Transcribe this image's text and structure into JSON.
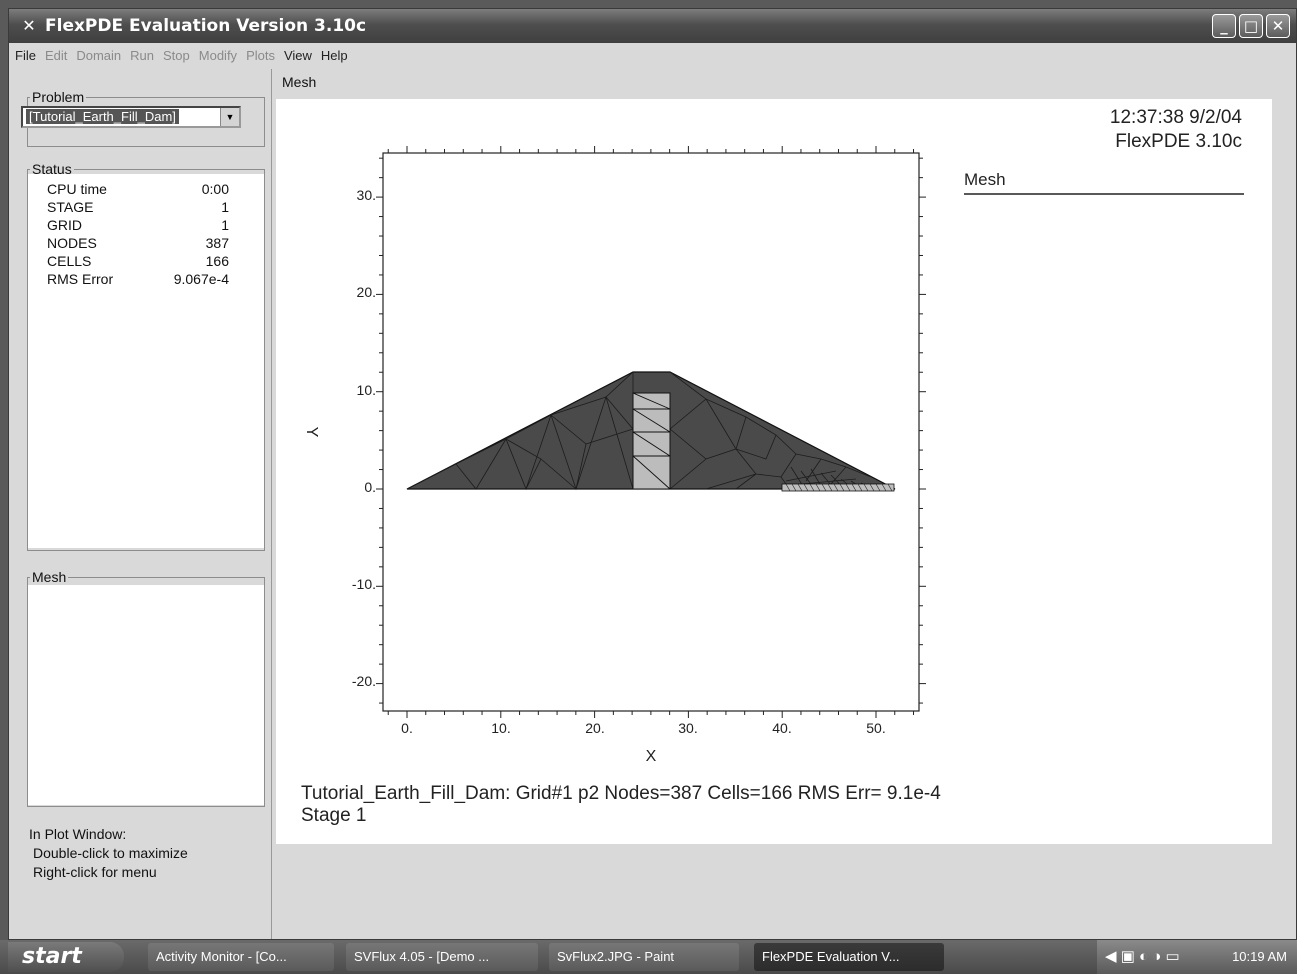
{
  "window": {
    "title": "FlexPDE Evaluation Version 3.10c",
    "buttons": [
      "minimize",
      "maximize",
      "close"
    ]
  },
  "menu": [
    {
      "label": "File",
      "enabled": true
    },
    {
      "label": "Edit",
      "enabled": false
    },
    {
      "label": "Domain",
      "enabled": false
    },
    {
      "label": "Run",
      "enabled": false
    },
    {
      "label": "Stop",
      "enabled": false
    },
    {
      "label": "Modify",
      "enabled": false
    },
    {
      "label": "Plots",
      "enabled": false
    },
    {
      "label": "View",
      "enabled": true
    },
    {
      "label": "Help",
      "enabled": true
    }
  ],
  "left": {
    "problem_legend": "Problem",
    "problem_value": "[Tutorial_Earth_Fill_Dam]",
    "status_legend": "Status",
    "status": [
      {
        "key": "CPU time",
        "value": "0:00"
      },
      {
        "key": "STAGE",
        "value": "1"
      },
      {
        "key": "GRID",
        "value": "1"
      },
      {
        "key": "NODES",
        "value": "387"
      },
      {
        "key": "CELLS",
        "value": "166"
      },
      {
        "key": "RMS Error",
        "value": "9.067e-4"
      }
    ],
    "mesh_legend": "Mesh",
    "hint1": "In Plot Window:",
    "hint2": "Double-click to maximize",
    "hint3": "Right-click for menu"
  },
  "plot": {
    "frame_legend": "Mesh",
    "time": "12:37:38 9/2/04",
    "version": "FlexPDE 3.10c",
    "legend_label": "Mesh",
    "xlabel": "X",
    "ylabel": "Y",
    "xticks": [
      "0.",
      "10.",
      "20.",
      "30.",
      "40.",
      "50."
    ],
    "yticks": [
      "30.",
      "20.",
      "10.",
      "0.",
      "-10.",
      "-20."
    ],
    "caption1": "Tutorial_Earth_Fill_Dam:  Grid#1  p2  Nodes=387 Cells=166 RMS Err= 9.1e-4",
    "caption2": "Stage 1"
  },
  "taskbar": {
    "start": "start",
    "tasks": [
      "Activity Monitor - [Co...",
      "SVFlux 4.05 - [Demo ...",
      "SvFlux2.JPG - Paint",
      "FlexPDE Evaluation V..."
    ],
    "clock": "10:19 AM"
  }
}
